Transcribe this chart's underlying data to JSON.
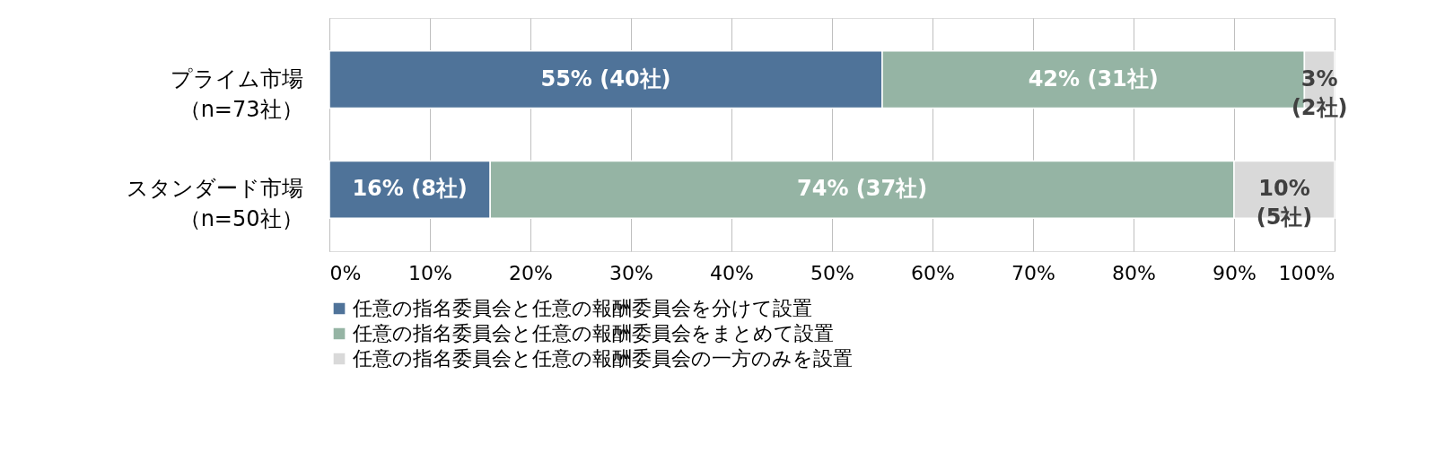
{
  "chart_data": {
    "type": "bar",
    "orientation": "horizontal",
    "stacked": true,
    "categories": [
      "プライム市場（n=73社）",
      "スタンダード市場（n=50社）"
    ],
    "series": [
      {
        "name": "任意の指名委員会と任意の報酬委員会を分けて設置",
        "color": "#4f7399",
        "values": [
          55,
          16
        ],
        "value_labels": [
          "55% (40社)",
          "16% (8社)"
        ]
      },
      {
        "name": "任意の指名委員会と任意の報酬委員会をまとめて設置",
        "color": "#95b4a4",
        "values": [
          42,
          74
        ],
        "value_labels": [
          "42% (31社)",
          "74% (37社)"
        ]
      },
      {
        "name": "任意の指名委員会と任意の報酬委員会の一方のみを設置",
        "color": "#d9d9d9",
        "values": [
          3,
          10
        ],
        "value_labels": [
          "3%\n(2社)",
          "10%\n(5社)"
        ]
      }
    ],
    "xlim": [
      0,
      100
    ],
    "xticks": [
      {
        "value": 0,
        "label": "0%"
      },
      {
        "value": 10,
        "label": "10%"
      },
      {
        "value": 20,
        "label": "20%"
      },
      {
        "value": 30,
        "label": "30%"
      },
      {
        "value": 40,
        "label": "40%"
      },
      {
        "value": 50,
        "label": "50%"
      },
      {
        "value": 60,
        "label": "60%"
      },
      {
        "value": 70,
        "label": "70%"
      },
      {
        "value": 80,
        "label": "80%"
      },
      {
        "value": 90,
        "label": "90%"
      },
      {
        "value": 100,
        "label": "100%"
      }
    ],
    "grid": "x",
    "legend": "bottom"
  }
}
